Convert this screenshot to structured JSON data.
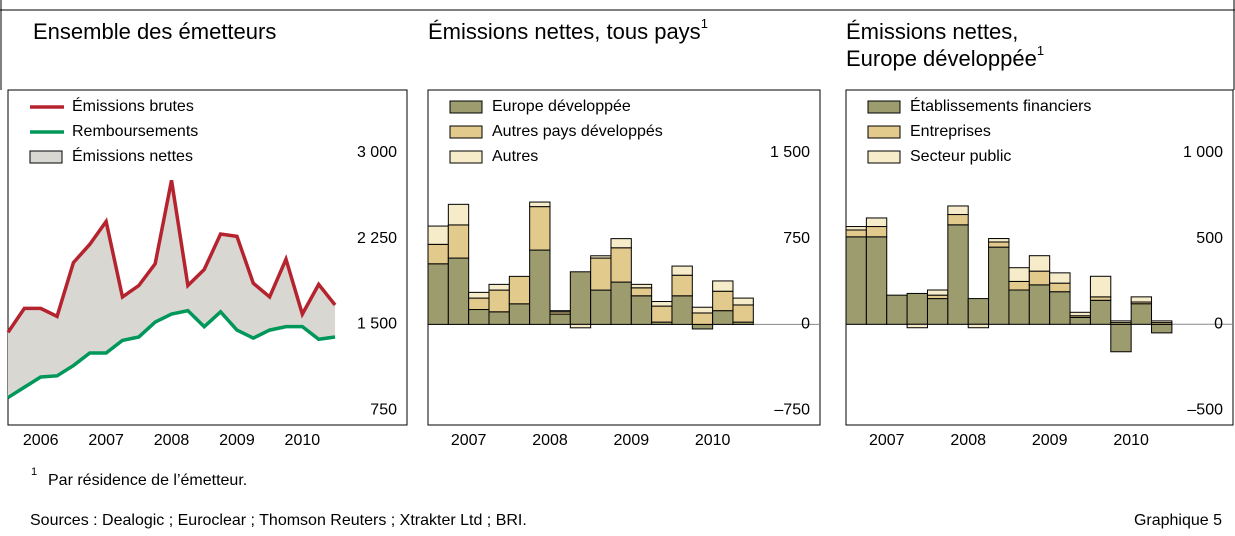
{
  "chart_data": [
    {
      "type": "line",
      "title": [
        "Ensemble des émetteurs"
      ],
      "x": [
        2006,
        2006.25,
        2006.5,
        2006.75,
        2007,
        2007.25,
        2007.5,
        2007.75,
        2008,
        2008.25,
        2008.5,
        2008.75,
        2009,
        2009.25,
        2009.5,
        2009.75,
        2010,
        2010.25,
        2010.5,
        2010.75,
        2011
      ],
      "series": [
        {
          "name": "Émissions brutes",
          "color": "#b5232f",
          "values": [
            1430,
            1640,
            1640,
            1570,
            2040,
            2200,
            2400,
            1740,
            1840,
            2030,
            2760,
            1840,
            1980,
            2290,
            2270,
            1860,
            1740,
            2070,
            1590,
            1850,
            1670
          ]
        },
        {
          "name": "Remboursements",
          "color": "#00975a",
          "values": [
            860,
            950,
            1040,
            1050,
            1140,
            1250,
            1250,
            1360,
            1390,
            1520,
            1590,
            1620,
            1480,
            1610,
            1450,
            1380,
            1450,
            1480,
            1480,
            1370,
            1390
          ]
        },
        {
          "name": "Émissions nettes",
          "color": "#d9d7d2",
          "fill_between": [
            0,
            1
          ]
        }
      ],
      "xlim": [
        2006,
        2012.1
      ],
      "xticks": [
        {
          "value": 2006.5,
          "label": "2006"
        },
        {
          "value": 2007.5,
          "label": "2007"
        },
        {
          "value": 2008.5,
          "label": "2008"
        },
        {
          "value": 2009.5,
          "label": "2009"
        },
        {
          "value": 2010.5,
          "label": "2010"
        }
      ],
      "ylim": [
        620,
        3550
      ],
      "yticks": [
        750,
        {
          "value": 1500,
          "label": "1 500"
        },
        {
          "value": 2250,
          "label": "2 250"
        },
        {
          "value": 3000,
          "label": "3 000"
        }
      ]
    },
    {
      "type": "stacked_bar",
      "title": [
        "Émissions nettes, tous pays"
      ],
      "title_ref": "1",
      "x": [
        2007,
        2007.25,
        2007.5,
        2007.75,
        2008,
        2008.25,
        2008.5,
        2008.75,
        2009,
        2009.25,
        2009.5,
        2009.75,
        2010,
        2010.25,
        2010.5,
        2010.75
      ],
      "series": [
        {
          "name": "Europe développée",
          "color": "#9d9c6f",
          "values": [
            530,
            580,
            130,
            110,
            180,
            650,
            90,
            460,
            300,
            370,
            250,
            20,
            250,
            -40,
            120,
            20
          ]
        },
        {
          "name": "Autres pays développés",
          "color": "#e2c98c",
          "values": [
            170,
            290,
            100,
            190,
            240,
            380,
            20,
            0,
            280,
            300,
            70,
            140,
            180,
            100,
            170,
            150
          ]
        },
        {
          "name": "Autres",
          "color": "#f6ecc9",
          "values": [
            160,
            180,
            50,
            50,
            0,
            40,
            10,
            -30,
            20,
            80,
            30,
            40,
            80,
            50,
            90,
            60
          ]
        }
      ],
      "xlim": [
        2007,
        2011.82
      ],
      "xticks": [
        {
          "value": 2007.5,
          "label": "2007"
        },
        {
          "value": 2008.5,
          "label": "2008"
        },
        {
          "value": 2009.5,
          "label": "2009"
        },
        {
          "value": 2010.5,
          "label": "2010"
        }
      ],
      "ylim": [
        -880,
        2050
      ],
      "yticks": [
        {
          "value": -750,
          "label": "–750"
        },
        0,
        750,
        {
          "value": 1500,
          "label": "1 500"
        }
      ],
      "zero_line": true
    },
    {
      "type": "stacked_bar",
      "title": [
        "Émissions nettes,",
        "Europe développée"
      ],
      "title_ref": "1",
      "x": [
        2007,
        2007.25,
        2007.5,
        2007.75,
        2008,
        2008.25,
        2008.5,
        2008.75,
        2009,
        2009.25,
        2009.5,
        2009.75,
        2010,
        2010.25,
        2010.5,
        2010.75
      ],
      "series": [
        {
          "name": "Établissements financiers",
          "color": "#9d9c6f",
          "values": [
            510,
            510,
            170,
            180,
            150,
            580,
            150,
            450,
            200,
            230,
            190,
            40,
            140,
            -160,
            120,
            -50
          ]
        },
        {
          "name": "Entreprises",
          "color": "#e2c98c",
          "values": [
            40,
            60,
            0,
            0,
            20,
            60,
            0,
            30,
            50,
            80,
            50,
            10,
            20,
            10,
            10,
            10
          ]
        },
        {
          "name": "Secteur public",
          "color": "#f6ecc9",
          "values": [
            20,
            50,
            0,
            -20,
            30,
            50,
            -20,
            20,
            80,
            90,
            60,
            20,
            120,
            10,
            30,
            10
          ]
        }
      ],
      "xlim": [
        2007,
        2011.75
      ],
      "xticks": [
        {
          "value": 2007.5,
          "label": "2007"
        },
        {
          "value": 2008.5,
          "label": "2008"
        },
        {
          "value": 2009.5,
          "label": "2009"
        },
        {
          "value": 2010.5,
          "label": "2010"
        }
      ],
      "ylim": [
        -587,
        1366
      ],
      "yticks": [
        {
          "value": -500,
          "label": "–500"
        },
        0,
        500,
        {
          "value": 1000,
          "label": "1 000"
        }
      ],
      "zero_line": true
    }
  ],
  "footnote": {
    "mark": "1",
    "text": "Par résidence de l’émetteur."
  },
  "sources": "Sources : Dealogic ; Euroclear ; Thomson Reuters ; Xtrakter Ltd ; BRI.",
  "figure_label": "Graphique 5"
}
